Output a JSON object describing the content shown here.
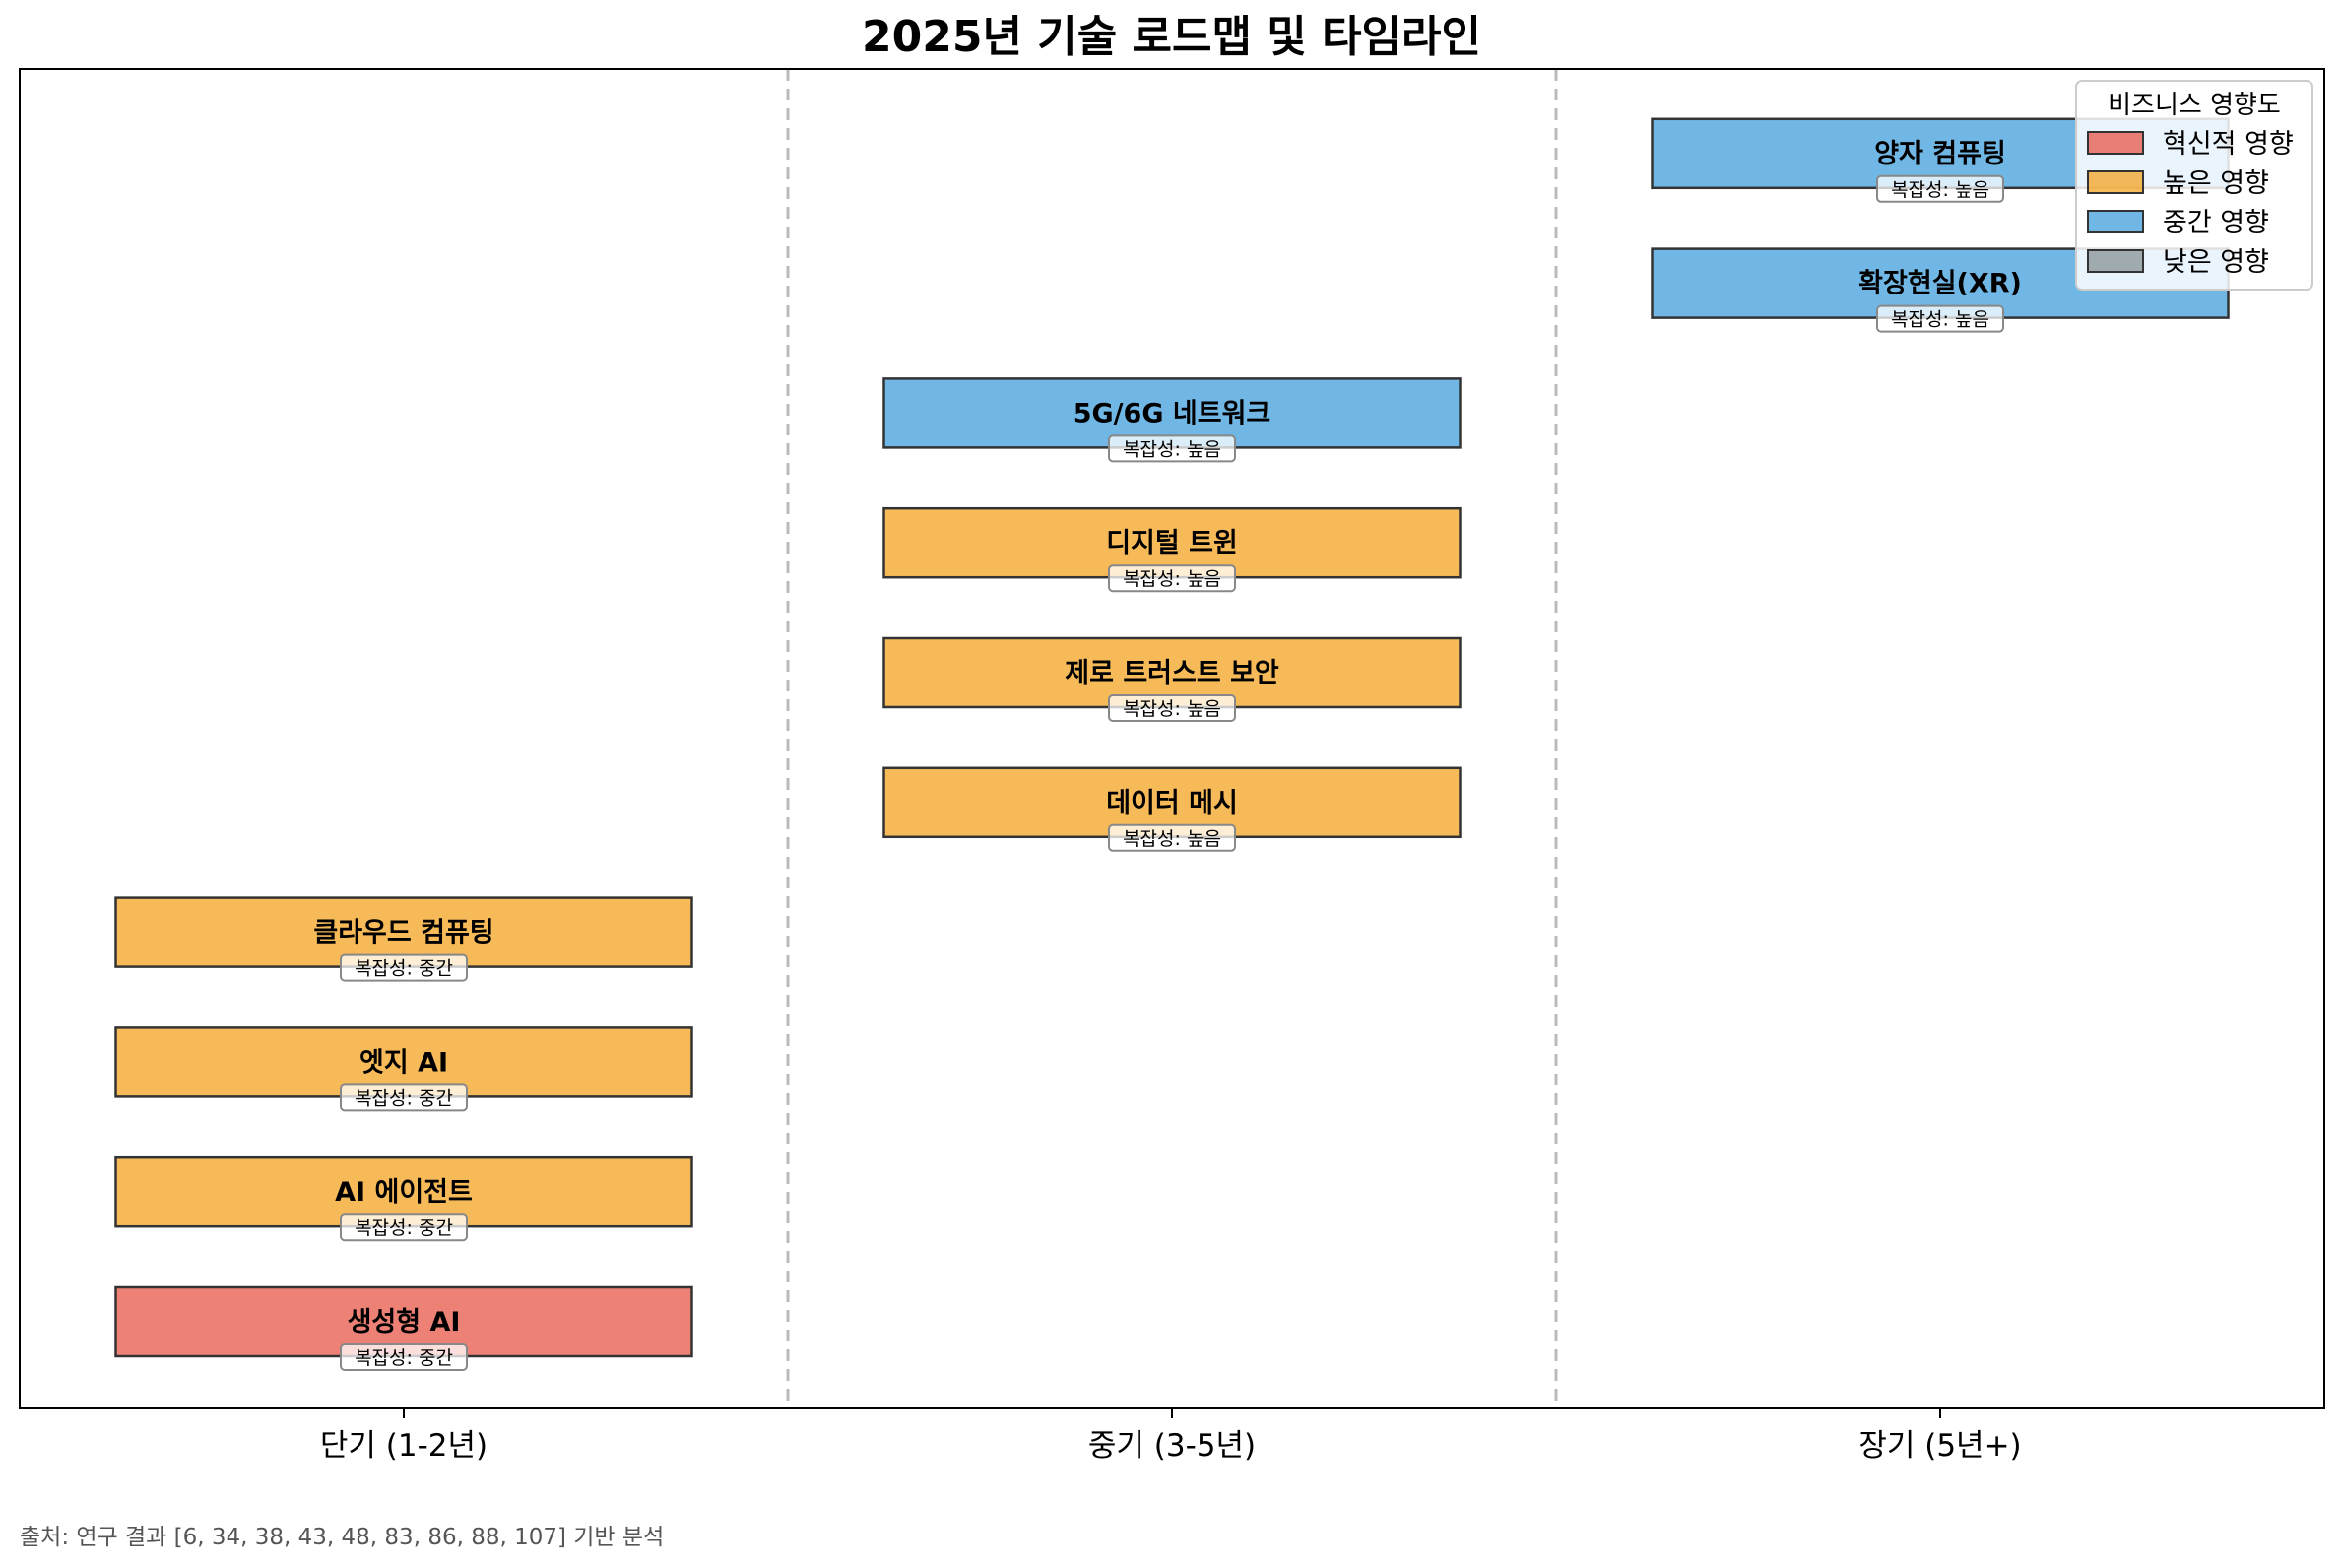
{
  "chart_data": {
    "type": "bar",
    "orientation": "horizontal",
    "title": "2025년 기술 로드맵 및 타임라인",
    "xlabel": "",
    "ylabel": "",
    "x_ticks": [
      "단기 (1-2년)",
      "중기 (3-5년)",
      "장기 (5년+)"
    ],
    "grid": false,
    "legend": {
      "title": "비즈니스 영향도",
      "position": "top-right",
      "entries": [
        {
          "label": "혁신적 영향",
          "color": "#e74c3c"
        },
        {
          "label": "높은 영향",
          "color": "#f39c12"
        },
        {
          "label": "중간 영향",
          "color": "#3498db"
        },
        {
          "label": "낮은 영향",
          "color": "#7f8c8d"
        }
      ]
    },
    "tasks": [
      {
        "name": "생성형 AI",
        "period": 0,
        "impact": "혁신적 영향",
        "complexity": "복잡성: 중간"
      },
      {
        "name": "AI 에이전트",
        "period": 0,
        "impact": "높은 영향",
        "complexity": "복잡성: 중간"
      },
      {
        "name": "엣지 AI",
        "period": 0,
        "impact": "높은 영향",
        "complexity": "복잡성: 중간"
      },
      {
        "name": "클라우드 컴퓨팅",
        "period": 0,
        "impact": "높은 영향",
        "complexity": "복잡성: 중간"
      },
      {
        "name": "데이터 메시",
        "period": 1,
        "impact": "높은 영향",
        "complexity": "복잡성: 높음"
      },
      {
        "name": "제로 트러스트 보안",
        "period": 1,
        "impact": "높은 영향",
        "complexity": "복잡성: 높음"
      },
      {
        "name": "디지털 트윈",
        "period": 1,
        "impact": "높은 영향",
        "complexity": "복잡성: 높음"
      },
      {
        "name": "5G/6G 네트워크",
        "period": 1,
        "impact": "중간 영향",
        "complexity": "복잡성: 높음"
      },
      {
        "name": "확장현실(XR)",
        "period": 2,
        "impact": "중간 영향",
        "complexity": "복잡성: 높음"
      },
      {
        "name": "양자 컴퓨팅",
        "period": 2,
        "impact": "중간 영향",
        "complexity": "복잡성: 높음"
      }
    ]
  },
  "source_note": "출처: 연구 결과 [6, 34, 38, 43, 48, 83, 86, 88, 107] 기반 분석"
}
